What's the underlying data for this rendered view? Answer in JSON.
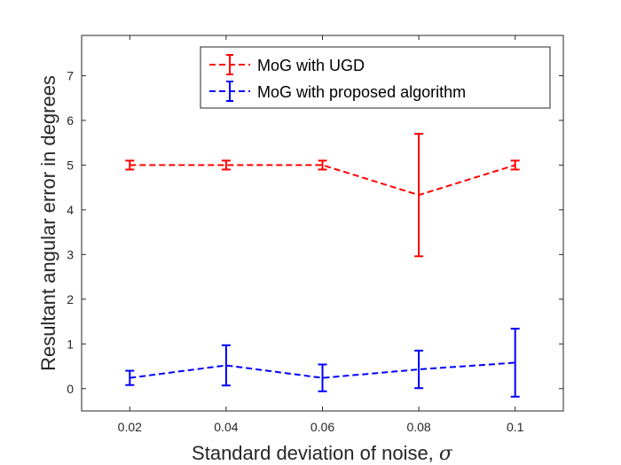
{
  "chart_data": {
    "type": "line",
    "title": "",
    "xlabel": "Standard deviation of noise, ",
    "xlabel_symbol": "σ",
    "ylabel": "Resultant angular error in degrees",
    "xlim": [
      0.01,
      0.11
    ],
    "ylim": [
      -0.5,
      7.9
    ],
    "x_ticks": [
      0.02,
      0.04,
      0.06,
      0.08,
      0.1
    ],
    "x_tick_labels": [
      "0.02",
      "0.04",
      "0.06",
      "0.08",
      "0.1"
    ],
    "y_ticks": [
      0,
      1,
      2,
      3,
      4,
      5,
      6,
      7
    ],
    "y_tick_labels": [
      "0",
      "1",
      "2",
      "3",
      "4",
      "5",
      "6",
      "7"
    ],
    "legend_position": "top-right",
    "grid": false,
    "series": [
      {
        "name": "MoG with UGD",
        "color": "#ff0000",
        "x": [
          0.02,
          0.04,
          0.06,
          0.08,
          0.1
        ],
        "values": [
          5.0,
          5.0,
          5.0,
          4.33,
          5.0
        ],
        "err_low": [
          0.1,
          0.1,
          0.1,
          1.37,
          0.1
        ],
        "err_high": [
          0.1,
          0.1,
          0.1,
          1.37,
          0.1
        ]
      },
      {
        "name": "MoG with proposed algorithm",
        "color": "#0000ff",
        "x": [
          0.02,
          0.04,
          0.06,
          0.08,
          0.1
        ],
        "values": [
          0.24,
          0.52,
          0.24,
          0.43,
          0.58
        ],
        "err_low": [
          0.16,
          0.45,
          0.3,
          0.42,
          0.76
        ],
        "err_high": [
          0.16,
          0.45,
          0.3,
          0.42,
          0.76
        ]
      }
    ]
  }
}
